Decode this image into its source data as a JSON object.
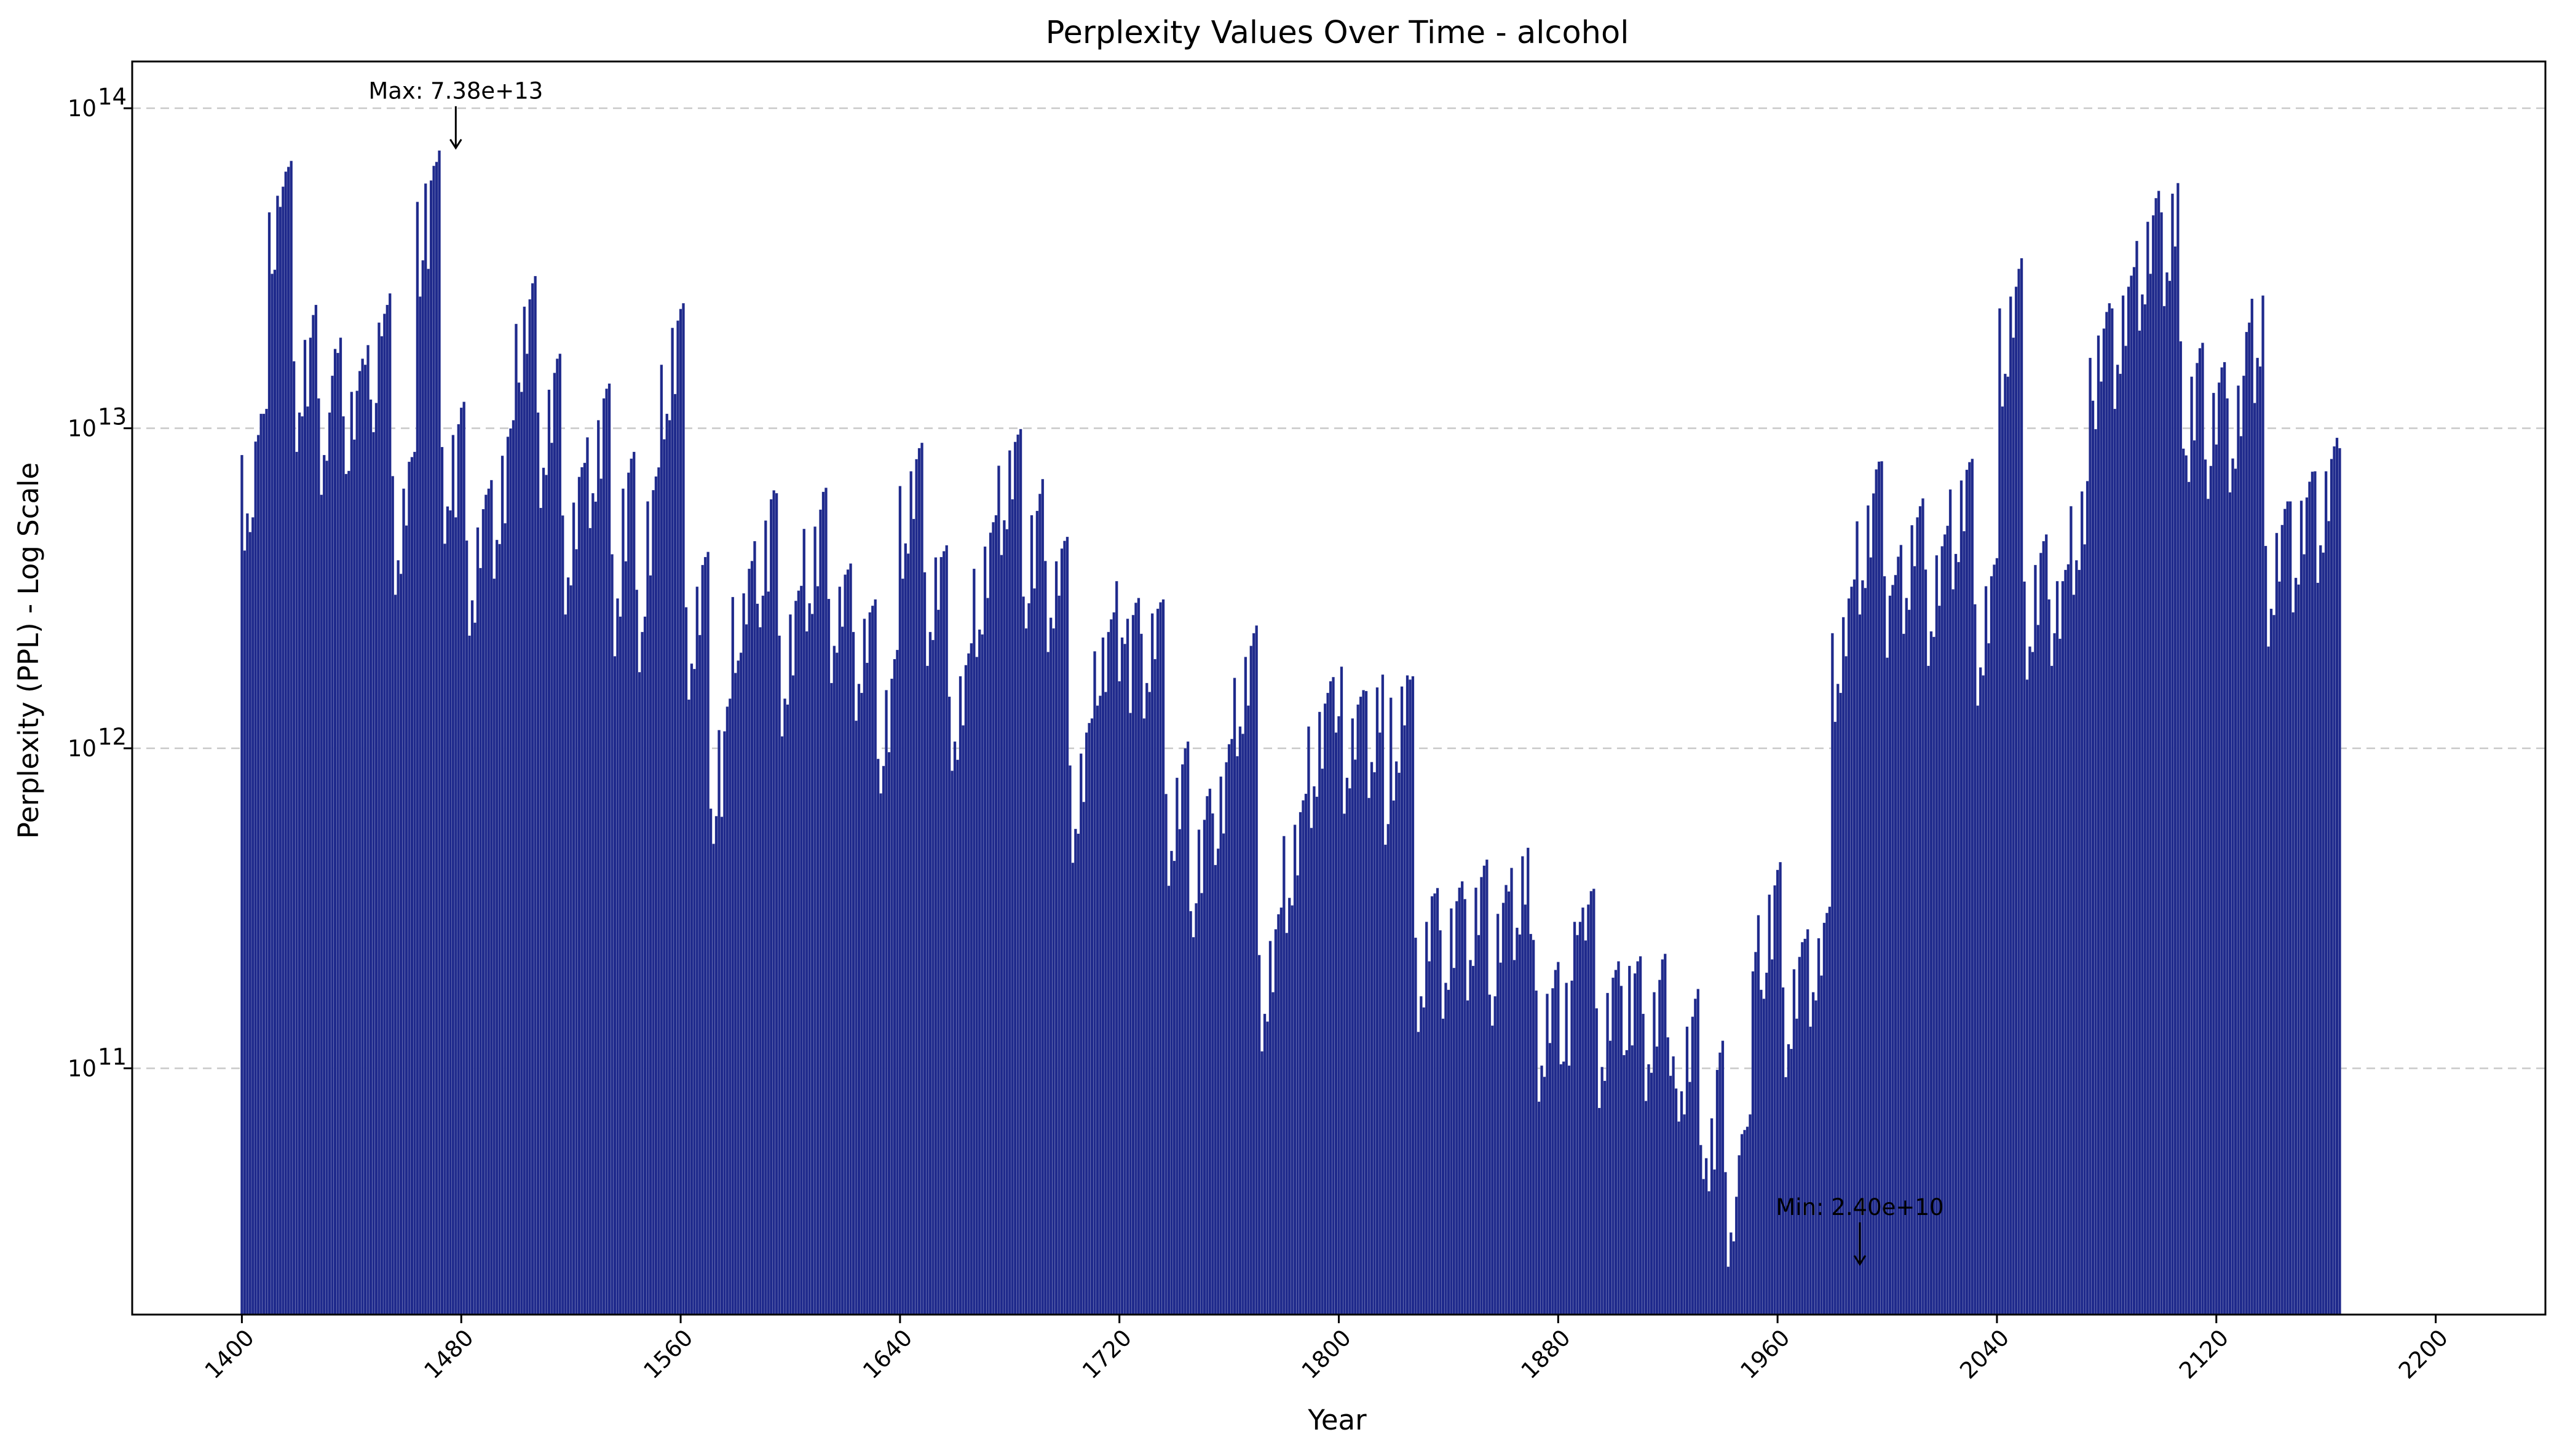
{
  "chart_data": {
    "type": "bar",
    "title": "Perplexity Values Over Time - alcohol",
    "xlabel": "Year",
    "ylabel": "Perplexity (PPL) - Log Scale",
    "yscale": "log",
    "ylim": [
      17000000000,
      140000000000000
    ],
    "xlim": [
      1360,
      2240
    ],
    "xticks": [
      1400,
      1480,
      1560,
      1640,
      1720,
      1800,
      1880,
      1960,
      2040,
      2120,
      2200
    ],
    "xtick_labels": [
      "1400",
      "1480",
      "1560",
      "1640",
      "1720",
      "1800",
      "1880",
      "1960",
      "2040",
      "2120",
      "2200"
    ],
    "yticks": [
      100000000000,
      1000000000000,
      10000000000000,
      100000000000000
    ],
    "ytick_labels": [
      {
        "base": "10",
        "exp": "11"
      },
      {
        "base": "10",
        "exp": "12"
      },
      {
        "base": "10",
        "exp": "13"
      },
      {
        "base": "10",
        "exp": "14"
      }
    ],
    "grid": "y-dashed",
    "bar_color": "#1f2a8c",
    "bar_edge_color": "#ffffff",
    "annotations": [
      {
        "text": "Max: 7.38e+13",
        "x": 1478,
        "y": 73800000000000
      },
      {
        "text": "Min: 2.40e+10",
        "x": 1990,
        "y": 24000000000
      }
    ],
    "x_start": 1400,
    "x_step": 1,
    "values": [
      8250000000000.0,
      4150000000000.0,
      5420000000000.0,
      4740000000000.0,
      5270000000000.0,
      9090000000000.0,
      9530000000000.0,
      11100000000000.0,
      11100000000000.0,
      11500000000000.0,
      47300000000000.0,
      30400000000000.0,
      31300000000000.0,
      53300000000000.0,
      49200000000000.0,
      56900000000000.0,
      63400000000000.0,
      65600000000000.0,
      68500000000000.0,
      16200000000000.0,
      8440000000000.0,
      11200000000000.0,
      10900000000000.0,
      18900000000000.0,
      11700000000000.0,
      19200000000000.0,
      22600000000000.0,
      24300000000000.0,
      12400000000000.0,
      6200000000000.0,
      8250000000000.0,
      7920000000000.0,
      11200000000000.0,
      14600000000000.0,
      17700000000000.0,
      17200000000000.0,
      19200000000000.0,
      10900000000000.0,
      7200000000000.0,
      7360000000000.0,
      13000000000000.0,
      9220000000000.0,
      13100000000000.0,
      15100000000000.0,
      16500000000000.0,
      15800000000000.0,
      18200000000000.0,
      12300000000000.0,
      9730000000000.0,
      12000000000000.0,
      21400000000000.0,
      19400000000000.0,
      22800000000000.0,
      24300000000000.0,
      26400000000000.0,
      7090000000000.0,
      3020000000000.0,
      3870000000000.0,
      3510000000000.0,
      6480000000000.0,
      4970000000000.0,
      7860000000000.0,
      8130000000000.0,
      8440000000000.0,
      51000000000000.0,
      25800000000000.0,
      33500000000000.0,
      58200000000000.0,
      31500000000000.0,
      59500000000000.0,
      66100000000000.0,
      68000000000000.0,
      73800000000000.0,
      8740000000000.0,
      4360000000000.0,
      5700000000000.0,
      5540000000000.0,
      9530000000000.0,
      5270000000000.0,
      10300000000000.0,
      11600000000000.0,
      12100000000000.0,
      4460000000000.0,
      2250000000000.0,
      2900000000000.0,
      2470000000000.0,
      4900000000000.0,
      3660000000000.0,
      5590000000000.0,
      6200000000000.0,
      6480000000000.0,
      6890000000000.0,
      3390000000000.0,
      4480000000000.0,
      4350000000000.0,
      8210000000000.0,
      5050000000000.0,
      9410000000000.0,
      9990000000000.0,
      10600000000000.0,
      21200000000000.0,
      13900000000000.0,
      13000000000000.0,
      24000000000000.0,
      17100000000000.0,
      25300000000000.0,
      28400000000000.0,
      29900000000000.0,
      11200000000000.0,
      5640000000000.0,
      7530000000000.0,
      7150000000000.0,
      13200000000000.0,
      9010000000000.0,
      14900000000000.0,
      16500000000000.0,
      17100000000000.0,
      5340000000000.0,
      2620000000000.0,
      3420000000000.0,
      3230000000000.0,
      5860000000000.0,
      4190000000000.0,
      7050000000000.0,
      7560000000000.0,
      7800000000000.0,
      9370000000000.0,
      4880000000000.0,
      6270000000000.0,
      5900000000000.0,
      10600000000000.0,
      6960000000000.0,
      12400000000000.0,
      13300000000000.0,
      13800000000000.0,
      4040000000000.0,
      1940000000000.0,
      2940000000000.0,
      2580000000000.0,
      6480000000000.0,
      3840000000000.0,
      7270000000000.0,
      8040000000000.0,
      8440000000000.0,
      3130000000000.0,
      1730000000000.0,
      2310000000000.0,
      2580000000000.0,
      5910000000000.0,
      3470000000000.0,
      6410000000000.0,
      7070000000000.0,
      7550000000000.0,
      15800000000000.0,
      9240000000000.0,
      11100000000000.0,
      10600000000000.0,
      20600000000000.0,
      12800000000000.0,
      21700000000000.0,
      23600000000000.0,
      24600000000000.0,
      2760000000000.0,
      1420000000000.0,
      1840000000000.0,
      1770000000000.0,
      3200000000000.0,
      2260000000000.0,
      3740000000000.0,
      3960000000000.0,
      4110000000000.0,
      648000000000.0,
      503000000000.0,
      614000000000.0,
      1140000000000.0,
      611000000000.0,
      1130000000000.0,
      1350000000000.0,
      1430000000000.0,
      2970000000000.0,
      1720000000000.0,
      1880000000000.0,
      1990000000000.0,
      3050000000000.0,
      2440000000000.0,
      3640000000000.0,
      3850000000000.0,
      4440000000000.0,
      2830000000000.0,
      2390000000000.0,
      3000000000000.0,
      5150000000000.0,
      3090000000000.0,
      6000000000000.0,
      6400000000000.0,
      6270000000000.0,
      2250000000000.0,
      1090000000000.0,
      1430000000000.0,
      1370000000000.0,
      2620000000000.0,
      1690000000000.0,
      2890000000000.0,
      3110000000000.0,
      3220000000000.0,
      4850000000000.0,
      2320000000000.0,
      2840000000000.0,
      2630000000000.0,
      4930000000000.0,
      3210000000000.0,
      5570000000000.0,
      6330000000000.0,
      6520000000000.0,
      2930000000000.0,
      1600000000000.0,
      2090000000000.0,
      1990000000000.0,
      3200000000000.0,
      2400000000000.0,
      3490000000000.0,
      3620000000000.0,
      3780000000000.0,
      2310000000000.0,
      1220000000000.0,
      1590000000000.0,
      1490000000000.0,
      2540000000000.0,
      1850000000000.0,
      2660000000000.0,
      2790000000000.0,
      2920000000000.0,
      927000000000.0,
      723000000000.0,
      881000000000.0,
      1520000000000.0,
      973000000000.0,
      1650000000000.0,
      1900000000000.0,
      2030000000000.0,
      6600000000000.0,
      3390000000000.0,
      4370000000000.0,
      4060000000000.0,
      7340000000000.0,
      5210000000000.0,
      8010000000000.0,
      8670000000000.0,
      9010000000000.0,
      3550000000000.0,
      1810000000000.0,
      2310000000000.0,
      2180000000000.0,
      3950000000000.0,
      2710000000000.0,
      3960000000000.0,
      4130000000000.0,
      4310000000000.0,
      1450000000000.0,
      851000000000.0,
      1050000000000.0,
      921000000000.0,
      1680000000000.0,
      1180000000000.0,
      1820000000000.0,
      1980000000000.0,
      2130000000000.0,
      3640000000000.0,
      1930000000000.0,
      2350000000000.0,
      2270000000000.0,
      4270000000000.0,
      2950000000000.0,
      4720000000000.0,
      5090000000000.0,
      5350000000000.0,
      7640000000000.0,
      4020000000000.0,
      5160000000000.0,
      4840000000000.0,
      8530000000000.0,
      6000000000000.0,
      9070000000000.0,
      9560000000000.0,
      9950000000000.0,
      2980000000000.0,
      2370000000000.0,
      2840000000000.0,
      5350000000000.0,
      3160000000000.0,
      5520000000000.0,
      6240000000000.0,
      6940000000000.0,
      3850000000000.0,
      2000000000000.0,
      2560000000000.0,
      2370000000000.0,
      3840000000000.0,
      3000000000000.0,
      4210000000000.0,
      4450000000000.0,
      4580000000000.0,
      884000000000.0,
      439000000000.0,
      560000000000.0,
      541000000000.0,
      963000000000.0,
      680000000000.0,
      1120000000000.0,
      1200000000000.0,
      1240000000000.0,
      2010000000000.0,
      1360000000000.0,
      1460000000000.0,
      2220000000000.0,
      1500000000000.0,
      2310000000000.0,
      2530000000000.0,
      2660000000000.0,
      3330000000000.0,
      1620000000000.0,
      2220000000000.0,
      2120000000000.0,
      2540000000000.0,
      1290000000000.0,
      2610000000000.0,
      2850000000000.0,
      2950000000000.0,
      2280000000000.0,
      1240000000000.0,
      1600000000000.0,
      1500000000000.0,
      2640000000000.0,
      1900000000000.0,
      2730000000000.0,
      2860000000000.0,
      2920000000000.0,
      720000000000.0,
      372000000000.0,
      478000000000.0,
      445000000000.0,
      809000000000.0,
      559000000000.0,
      891000000000.0,
      1000000000000.0,
      1050000000000.0,
      310000000000.0,
      257000000000.0,
      328000000000.0,
      557000000000.0,
      353000000000.0,
      598000000000.0,
      709000000000.0,
      748000000000.0,
      626000000000.0,
      432000000000.0,
      486000000000.0,
      816000000000.0,
      542000000000.0,
      905000000000.0,
      1030000000000.0,
      1070000000000.0,
      1660000000000.0,
      945000000000.0,
      1170000000000.0,
      1110000000000.0,
      1930000000000.0,
      1360000000000.0,
      2090000000000.0,
      2290000000000.0,
      2420000000000.0,
      226000000000.0,
      113000000000.0,
      148000000000.0,
      140000000000.0,
      250000000000.0,
      173000000000.0,
      272000000000.0,
      303000000000.0,
      318000000000.0,
      532000000000.0,
      265000000000.0,
      341000000000.0,
      323000000000.0,
      577000000000.0,
      401000000000.0,
      632000000000.0,
      688000000000.0,
      721000000000.0,
      1170000000000.0,
      564000000000.0,
      761000000000.0,
      706000000000.0,
      1300000000000.0,
      864000000000.0,
      1380000000000.0,
      1490000000000.0,
      1620000000000.0,
      1670000000000.0,
      1120000000000.0,
      1260000000000.0,
      1800000000000.0,
      625000000000.0,
      809000000000.0,
      750000000000.0,
      1240000000000.0,
      922000000000.0,
      1370000000000.0,
      1450000000000.0,
      1520000000000.0,
      1510000000000.0,
      700000000000.0,
      906000000000.0,
      842000000000.0,
      1550000000000.0,
      1120000000000.0,
      1700000000000.0,
      500000000000.0,
      580000000000.0,
      1440000000000.0,
      687000000000.0,
      910000000000.0,
      839000000000.0,
      1560000000000.0,
      1180000000000.0,
      1690000000000.0,
      1640000000000.0,
      1680000000000.0,
      256000000000.0,
      130000000000.0,
      168000000000.0,
      155000000000.0,
      287000000000.0,
      216000000000.0,
      345000000000.0,
      352000000000.0,
      366000000000.0,
      270000000000.0,
      143000000000.0,
      185000000000.0,
      176000000000.0,
      316000000000.0,
      206000000000.0,
      333000000000.0,
      367000000000.0,
      384000000000.0,
      338000000000.0,
      163000000000.0,
      218000000000.0,
      209000000000.0,
      367000000000.0,
      261000000000.0,
      396000000000.0,
      430000000000.0,
      449000000000.0,
      170000000000.0,
      136000000000.0,
      168000000000.0,
      304000000000.0,
      214000000000.0,
      329000000000.0,
      374000000000.0,
      357000000000.0,
      423000000000.0,
      218000000000.0,
      275000000000.0,
      262000000000.0,
      460000000000.0,
      325000000000.0,
      489000000000.0,
      263000000000.0,
      252000000000.0,
      175000000000.0,
      78700000000.0,
      102000000000.0,
      94100000000.0,
      171000000000.0,
      120000000000.0,
      178000000000.0,
      203000000000.0,
      215000000000.0,
      103000000000.0,
      105000000000.0,
      185000000000.0,
      102000000000.0,
      188000000000.0,
      287000000000.0,
      261000000000.0,
      287000000000.0,
      318000000000.0,
      251000000000.0,
      325000000000.0,
      358000000000.0,
      364000000000.0,
      154000000000.0,
      75200000000.0,
      101000000000.0,
      91400000000.0,
      172000000000.0,
      122000000000.0,
      192000000000.0,
      203000000000.0,
      216000000000.0,
      181000000000.0,
      110000000000.0,
      114000000000.0,
      209000000000.0,
      118000000000.0,
      198000000000.0,
      216000000000.0,
      224000000000.0,
      148000000000.0,
      79100000000.0,
      103000000000.0,
      96900000000.0,
      173000000000.0,
      117000000000.0,
      189000000000.0,
      219000000000.0,
      228000000000.0,
      125000000000.0,
      94800000000.0,
      109000000000.0,
      86500000000.0,
      68200000000.0,
      84800000000.0,
      71800000000.0,
      135000000000.0,
      90700000000.0,
      145000000000.0,
      165000000000.0,
      177000000000.0,
      57600000000.0,
      45100000000.0,
      52400000000.0,
      41300000000.0,
      69800000000.0,
      48300000000.0,
      98900000000.0,
      112000000000.0,
      122000000000.0,
      47400000000.0,
      24000000000.0,
      30700000000.0,
      28800000000.0,
      39700000000.0,
      53500000000.0,
      62300000000.0,
      64200000000.0,
      65700000000.0,
      71800000000.0,
      201000000000.0,
      231000000000.0,
      301000000000.0,
      176000000000.0,
      165000000000.0,
      199000000000.0,
      349000000000.0,
      219000000000.0,
      373000000000.0,
      417000000000.0,
      441000000000.0,
      179000000000.0,
      93900000000.0,
      119000000000.0,
      115000000000.0,
      204000000000.0,
      143000000000.0,
      223000000000.0,
      248000000000.0,
      254000000000.0,
      272000000000.0,
      135000000000.0,
      173000000000.0,
      163000000000.0,
      255000000000.0,
      195000000000.0,
      285000000000.0,
      306000000000.0,
      320000000000.0,
      2290000000000.0,
      1210000000000.0,
      1590000000000.0,
      1490000000000.0,
      2570000000000.0,
      1940000000000.0,
      2940000000000.0,
      3200000000000.0,
      3370000000000.0,
      5120000000000.0,
      2620000000000.0,
      3350000000000.0,
      3170000000000.0,
      5740000000000.0,
      3950000000000.0,
      6260000000000.0,
      7440000000000.0,
      7870000000000.0,
      7890000000000.0,
      3450000000000.0,
      1920000000000.0,
      3000000000000.0,
      3240000000000.0,
      3480000000000.0,
      3970000000000.0,
      4320000000000.0,
      2280000000000.0,
      2950000000000.0,
      2710000000000.0,
      4980000000000.0,
      3710000000000.0,
      5270000000000.0,
      5710000000000.0,
      6040000000000.0,
      3620000000000.0,
      1810000000000.0,
      2320000000000.0,
      2230000000000.0,
      4010000000000.0,
      2790000000000.0,
      4280000000000.0,
      4660000000000.0,
      4960000000000.0,
      6440000000000.0,
      3140000000000.0,
      4050000000000.0,
      3820000000000.0,
      6870000000000.0,
      4770000000000.0,
      7420000000000.0,
      7840000000000.0,
      8030000000000.0,
      2820000000000.0,
      1360000000000.0,
      1790000000000.0,
      1690000000000.0,
      3210000000000.0,
      2130000000000.0,
      3450000000000.0,
      3750000000000.0,
      3930000000000.0,
      23700000000000.0,
      11700000000000.0,
      14800000000000.0,
      14500000000000.0,
      25800000000000.0,
      19200000000000.0,
      27700000000000.0,
      31500000000000.0,
      34000000000000.0,
      3320000000000.0,
      1640000000000.0,
      2080000000000.0,
      2000000000000.0,
      3740000000000.0,
      2430000000000.0,
      4080000000000.0,
      4440000000000.0,
      4660000000000.0,
      2920000000000.0,
      1810000000000.0,
      2290000000000.0,
      3330000000000.0,
      2200000000000.0,
      3330000000000.0,
      3610000000000.0,
      3760000000000.0,
      5710000000000.0,
      3020000000000.0,
      3870000000000.0,
      3610000000000.0,
      6350000000000.0,
      4340000000000.0,
      6840000000000.0,
      16600000000000.0,
      12200000000000.0,
      9940000000000.0,
      19500000000000.0,
      14000000000000.0,
      20500000000000.0,
      23100000000000.0,
      24600000000000.0,
      23700000000000.0,
      11500000000000.0,
      15800000000000.0,
      14800000000000.0,
      26000000000000.0,
      18100000000000.0,
      27700000000000.0,
      30000000000000.0,
      31900000000000.0,
      38500000000000.0,
      20200000000000.0,
      26200000000000.0,
      24400000000000.0,
      44200000000000.0,
      30400000000000.0,
      46300000000000.0,
      52400000000000.0,
      55200000000000.0,
      47300000000000.0,
      24100000000000.0,
      30700000000000.0,
      28900000000000.0,
      54100000000000.0,
      37000000000000.0,
      58400000000000.0,
      18700000000000.0,
      8640000000000.0,
      8230000000000.0,
      6800000000000.0,
      14500000000000.0,
      9170000000000.0,
      16000000000000.0,
      17800000000000.0,
      18500000000000.0,
      7990000000000.0,
      6020000000000.0,
      7630000000000.0,
      12900000000000.0,
      8900000000000.0,
      13900000000000.0,
      15500000000000.0,
      16100000000000.0,
      12400000000000.0,
      6310000000000.0,
      8050000000000.0,
      7480000000000.0,
      13600000000000.0,
      9450000000000.0,
      14600000000000.0,
      20000000000000.0,
      21400000000000.0,
      25400000000000.0,
      12000000000000.0,
      16600000000000.0,
      15600000000000.0,
      26000000000000.0,
      4290000000000.0,
      2080000000000.0,
      2730000000000.0,
      2610000000000.0,
      4710000000000.0,
      3320000000000.0,
      4990000000000.0,
      5600000000000.0,
      5910000000000.0,
      5910000000000.0,
      2660000000000.0,
      3410000000000.0,
      3250000000000.0,
      5940000000000.0,
      4040000000000.0,
      6080000000000.0,
      6810000000000.0,
      7320000000000.0,
      7340000000000.0,
      3290000000000.0,
      4310000000000.0,
      4090000000000.0,
      7340000000000.0,
      5130000000000.0,
      8020000000000.0,
      8780000000000.0,
      9340000000000.0,
      8670000000000.0
    ]
  }
}
